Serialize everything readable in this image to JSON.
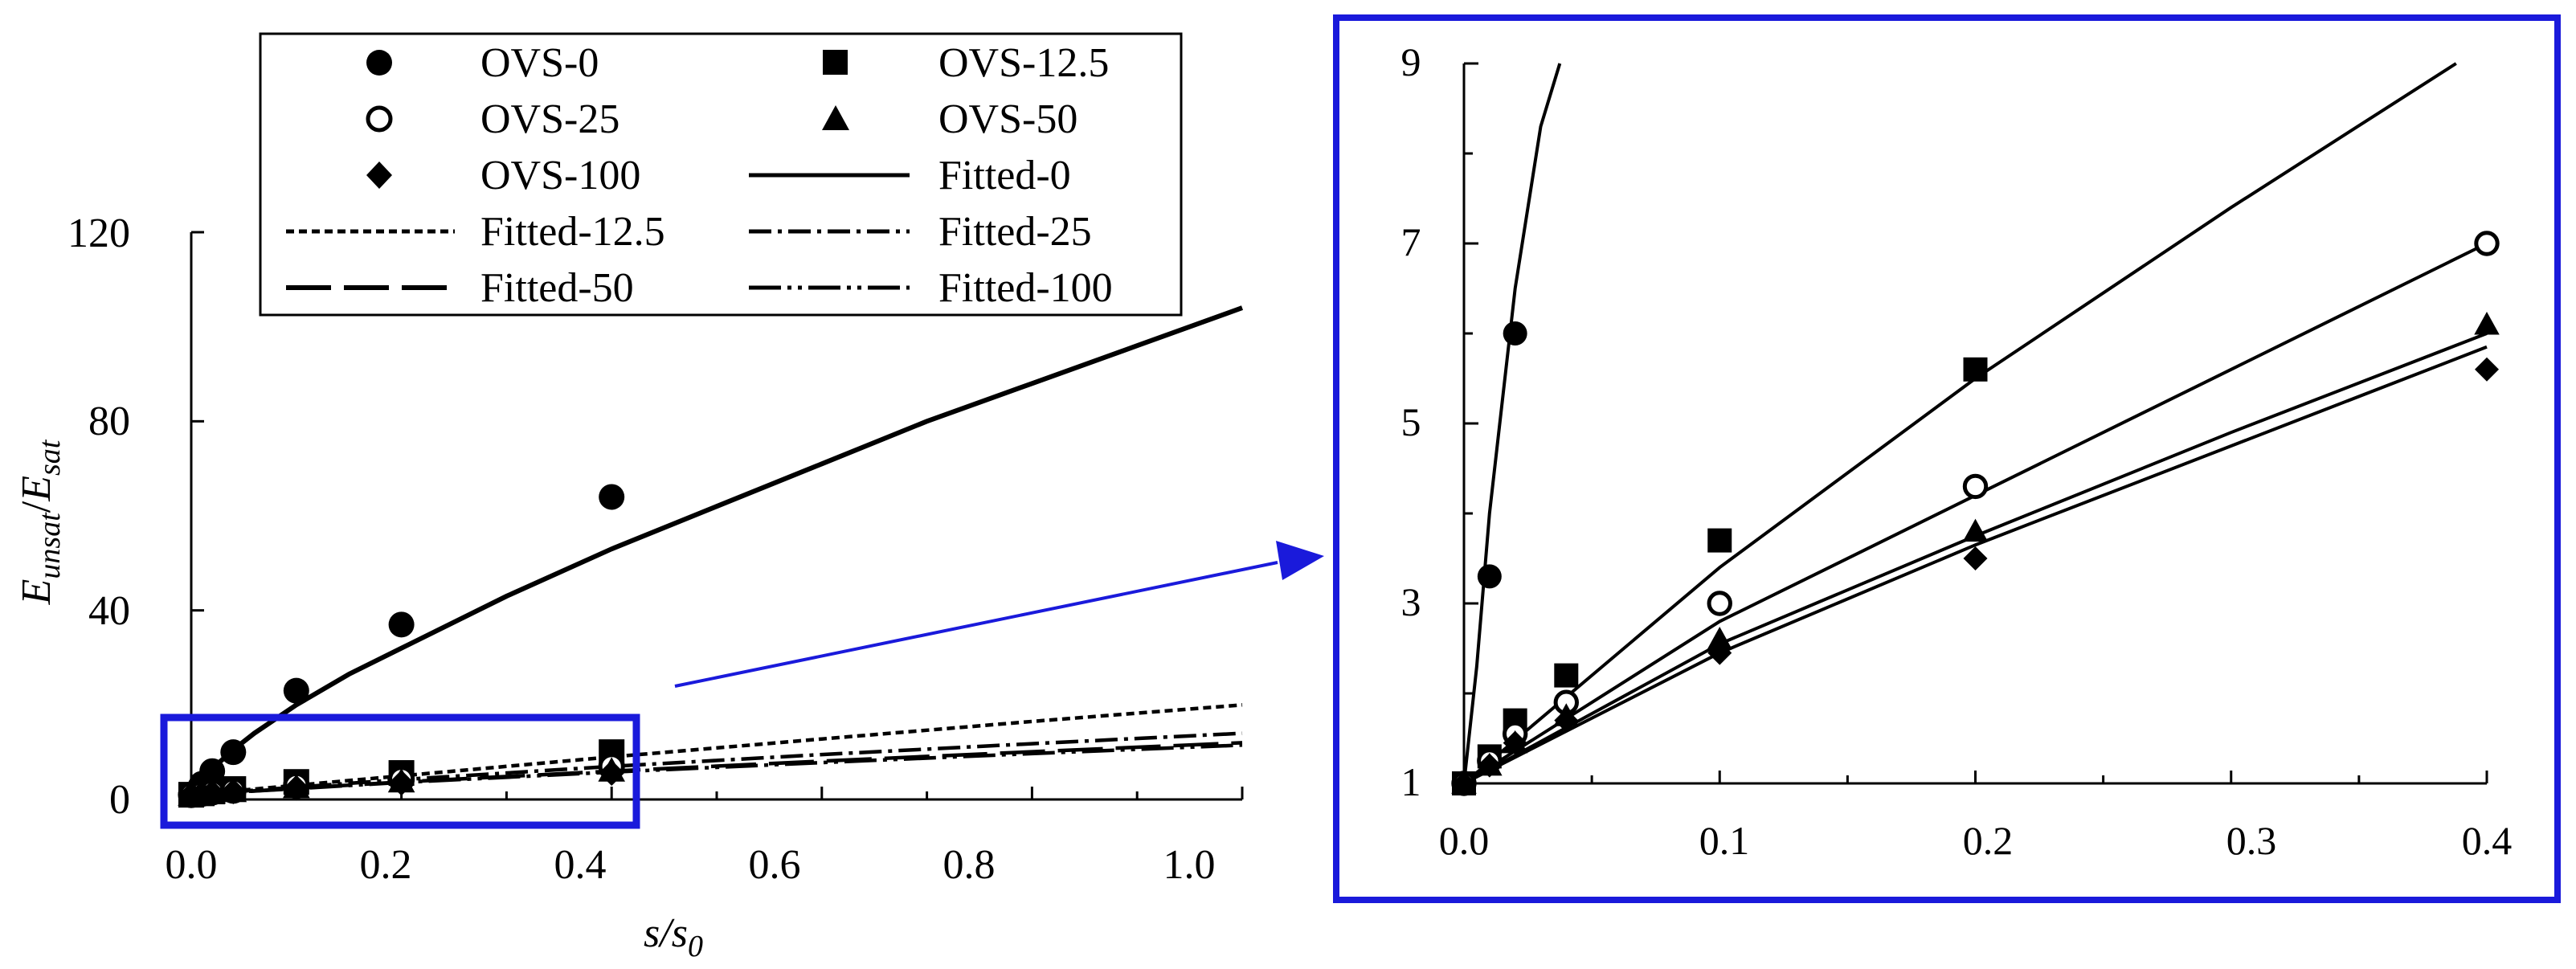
{
  "colors": {
    "ink": "#000000",
    "accent": "#1a1adb",
    "background": "#ffffff"
  },
  "chart_data": [
    {
      "type": "scatter",
      "title": "",
      "xlabel": "s/s0",
      "xlabel_parts": {
        "base": "s/s",
        "sub": "0"
      },
      "ylabel": "Eunsat/Esat",
      "ylabel_parts": {
        "a": "E",
        "a_sub": "unsat",
        "slash": "/",
        "b": "E",
        "b_sub": "sat"
      },
      "xlim": [
        0.0,
        1.0
      ],
      "ylim": [
        0,
        120
      ],
      "x_ticks": [
        0.0,
        0.2,
        0.4,
        0.6,
        0.8,
        1.0
      ],
      "x_tick_labels": [
        "0.0",
        "0.2",
        "0.4",
        "0.6",
        "0.8",
        "1.0"
      ],
      "y_ticks": [
        0,
        40,
        80,
        120
      ],
      "y_tick_labels": [
        "0",
        "40",
        "80",
        "120"
      ],
      "grid": false,
      "legend_position": "top",
      "legend": {
        "points": [
          {
            "label": "OVS-0",
            "marker": "circle-filled"
          },
          {
            "label": "OVS-12.5",
            "marker": "square"
          },
          {
            "label": "OVS-25",
            "marker": "circle-open"
          },
          {
            "label": "OVS-50",
            "marker": "triangle"
          },
          {
            "label": "OVS-100",
            "marker": "diamond"
          }
        ],
        "lines": [
          {
            "label": "Fitted-0",
            "dash": "solid"
          },
          {
            "label": "Fitted-12.5",
            "dash": "short-dash"
          },
          {
            "label": "Fitted-25",
            "dash": "dash-dot"
          },
          {
            "label": "Fitted-50",
            "dash": "long-dash"
          },
          {
            "label": "Fitted-100",
            "dash": "dash-dot-dot"
          }
        ]
      },
      "series": [
        {
          "name": "OVS-0",
          "marker": "circle-filled",
          "x": [
            0.0,
            0.01,
            0.02,
            0.04,
            0.1,
            0.2,
            0.4
          ],
          "y": [
            1,
            3.3,
            6,
            10,
            23,
            37,
            64
          ]
        },
        {
          "name": "OVS-12.5",
          "marker": "square",
          "x": [
            0.0,
            0.01,
            0.02,
            0.04,
            0.1,
            0.2,
            0.4
          ],
          "y": [
            1,
            1.3,
            1.7,
            2.2,
            3.7,
            5.6,
            10
          ]
        },
        {
          "name": "OVS-25",
          "marker": "circle-open",
          "x": [
            0.0,
            0.01,
            0.02,
            0.04,
            0.1,
            0.2,
            0.4
          ],
          "y": [
            1,
            1.25,
            1.55,
            1.9,
            3.0,
            4.3,
            7.0
          ]
        },
        {
          "name": "OVS-50",
          "marker": "triangle",
          "x": [
            0.0,
            0.01,
            0.02,
            0.04,
            0.1,
            0.2,
            0.4
          ],
          "y": [
            1,
            1.2,
            1.45,
            1.75,
            2.6,
            3.8,
            6.1
          ]
        },
        {
          "name": "OVS-100",
          "marker": "diamond",
          "x": [
            0.0,
            0.01,
            0.02,
            0.04,
            0.1,
            0.2,
            0.4
          ],
          "y": [
            1,
            1.2,
            1.45,
            1.7,
            2.45,
            3.5,
            5.6
          ]
        }
      ],
      "fitted_lines": [
        {
          "name": "Fitted-0",
          "dash": "solid",
          "x": [
            0.0,
            0.005,
            0.01,
            0.02,
            0.04,
            0.06,
            0.1,
            0.15,
            0.2,
            0.3,
            0.4,
            0.5,
            0.6,
            0.7,
            0.8,
            0.9,
            1.0
          ],
          "y": [
            1,
            2.3,
            4,
            6.5,
            10.5,
            14,
            20,
            26.5,
            32,
            43,
            53,
            62,
            71,
            80,
            88,
            96,
            104
          ]
        },
        {
          "name": "Fitted-12.5",
          "dash": "short-dash",
          "x": [
            0.0,
            0.2,
            0.4,
            0.6,
            0.8,
            1.0
          ],
          "y": [
            1,
            5.0,
            9.0,
            12.8,
            16.5,
            20
          ]
        },
        {
          "name": "Fitted-25",
          "dash": "dash-dot",
          "x": [
            0.0,
            0.2,
            0.4,
            0.6,
            0.8,
            1.0
          ],
          "y": [
            1,
            4.2,
            7.0,
            9.5,
            11.8,
            14
          ]
        },
        {
          "name": "Fitted-50",
          "dash": "long-dash",
          "x": [
            0.0,
            0.2,
            0.4,
            0.6,
            0.8,
            1.0
          ],
          "y": [
            1,
            3.7,
            6.0,
            8.1,
            10.1,
            12
          ]
        },
        {
          "name": "Fitted-100",
          "dash": "dash-dot-dot",
          "x": [
            0.0,
            0.2,
            0.4,
            0.6,
            0.8,
            1.0
          ],
          "y": [
            1,
            3.6,
            5.8,
            7.8,
            9.7,
            11.5
          ]
        }
      ]
    },
    {
      "type": "scatter",
      "title": "",
      "xlabel": "",
      "ylabel": "",
      "xlim": [
        0.0,
        0.4
      ],
      "ylim": [
        1,
        9
      ],
      "x_ticks": [
        0.0,
        0.1,
        0.2,
        0.3,
        0.4
      ],
      "x_tick_labels": [
        "0.0",
        "0.1",
        "0.2",
        "0.3",
        "0.4"
      ],
      "y_ticks": [
        1,
        3,
        5,
        7,
        9
      ],
      "y_tick_labels": [
        "1",
        "3",
        "5",
        "7",
        "9"
      ],
      "grid": false,
      "series": [
        {
          "name": "OVS-0",
          "marker": "circle-filled",
          "x": [
            0.0,
            0.01,
            0.02
          ],
          "y": [
            1,
            3.3,
            6
          ]
        },
        {
          "name": "OVS-12.5",
          "marker": "square",
          "x": [
            0.0,
            0.01,
            0.02,
            0.04,
            0.1,
            0.2
          ],
          "y": [
            1,
            1.3,
            1.7,
            2.2,
            3.7,
            5.6
          ]
        },
        {
          "name": "OVS-25",
          "marker": "circle-open",
          "x": [
            0.0,
            0.01,
            0.02,
            0.04,
            0.1,
            0.2,
            0.4
          ],
          "y": [
            1,
            1.25,
            1.55,
            1.9,
            3.0,
            4.3,
            7.0
          ]
        },
        {
          "name": "OVS-50",
          "marker": "triangle",
          "x": [
            0.0,
            0.01,
            0.02,
            0.04,
            0.1,
            0.2,
            0.4
          ],
          "y": [
            1,
            1.2,
            1.45,
            1.75,
            2.6,
            3.8,
            6.1
          ]
        },
        {
          "name": "OVS-100",
          "marker": "diamond",
          "x": [
            0.0,
            0.01,
            0.02,
            0.04,
            0.1,
            0.2,
            0.4
          ],
          "y": [
            1,
            1.2,
            1.45,
            1.7,
            2.45,
            3.5,
            5.6
          ]
        }
      ],
      "fitted_lines": [
        {
          "name": "Fitted-0",
          "x": [
            0.0,
            0.005,
            0.01,
            0.02,
            0.03,
            0.0375
          ],
          "y": [
            1,
            2.3,
            4,
            6.5,
            8.3,
            9
          ]
        },
        {
          "name": "Fitted-12.5",
          "x": [
            0.0,
            0.1,
            0.2,
            0.3,
            0.388
          ],
          "y": [
            1,
            3.4,
            5.5,
            7.4,
            9
          ]
        },
        {
          "name": "Fitted-25",
          "x": [
            0.0,
            0.1,
            0.2,
            0.3,
            0.4
          ],
          "y": [
            1,
            2.8,
            4.2,
            5.6,
            7.0
          ]
        },
        {
          "name": "Fitted-50",
          "x": [
            0.0,
            0.1,
            0.2,
            0.3,
            0.4
          ],
          "y": [
            1,
            2.55,
            3.75,
            4.9,
            6.0
          ]
        },
        {
          "name": "Fitted-100",
          "x": [
            0.0,
            0.1,
            0.2,
            0.3,
            0.4
          ],
          "y": [
            1,
            2.45,
            3.65,
            4.75,
            5.85
          ]
        }
      ]
    }
  ]
}
